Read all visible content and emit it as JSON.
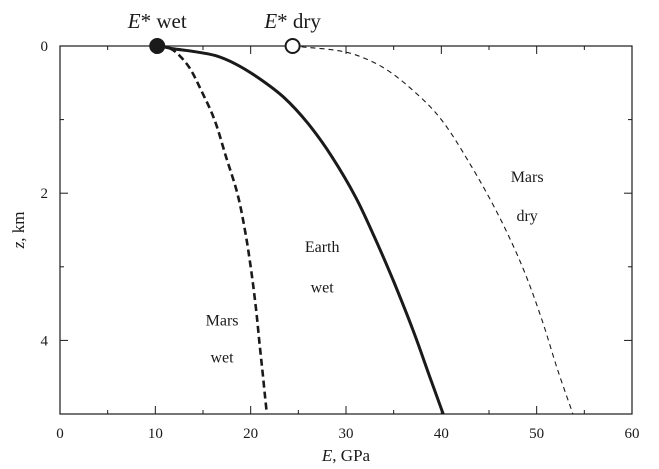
{
  "chart_data": {
    "type": "line",
    "xlabel_italic": "E",
    "xlabel_rest": ", GPa",
    "ylabel_italic": "z",
    "ylabel_rest": ", km",
    "xlim": [
      0,
      60
    ],
    "ylim": [
      0,
      5
    ],
    "y_inverted": true,
    "grid": false,
    "x_ticks": [
      0,
      10,
      20,
      30,
      40,
      50,
      60
    ],
    "y_ticks": [
      0,
      2,
      4
    ],
    "series": [
      {
        "style": "thick-dashed",
        "points": [
          [
            10.4,
            0
          ],
          [
            11.3,
            0.02
          ],
          [
            12.3,
            0.1
          ],
          [
            13.6,
            0.3
          ],
          [
            14.8,
            0.6
          ],
          [
            16.2,
            1.0
          ],
          [
            17.4,
            1.5
          ],
          [
            18.6,
            2.0
          ],
          [
            19.4,
            2.5
          ],
          [
            20.0,
            3.0
          ],
          [
            20.5,
            3.5
          ],
          [
            20.9,
            4.0
          ],
          [
            21.3,
            4.5
          ],
          [
            21.7,
            5.0
          ]
        ]
      },
      {
        "style": "thick-solid",
        "points": [
          [
            10.4,
            0
          ],
          [
            12.0,
            0.04
          ],
          [
            13.8,
            0.07
          ],
          [
            16.3,
            0.13
          ],
          [
            18.5,
            0.25
          ],
          [
            21.0,
            0.45
          ],
          [
            23.5,
            0.7
          ],
          [
            26.0,
            1.05
          ],
          [
            28.5,
            1.5
          ],
          [
            31.0,
            2.05
          ],
          [
            33.0,
            2.6
          ],
          [
            35.0,
            3.2
          ],
          [
            37.0,
            3.85
          ],
          [
            38.8,
            4.5
          ],
          [
            40.2,
            5.0
          ]
        ]
      },
      {
        "style": "thin-dashed",
        "points": [
          [
            24.4,
            0
          ],
          [
            26.0,
            0.02
          ],
          [
            28.5,
            0.05
          ],
          [
            31.0,
            0.12
          ],
          [
            34.0,
            0.3
          ],
          [
            37.0,
            0.6
          ],
          [
            40.0,
            1.0
          ],
          [
            43.0,
            1.6
          ],
          [
            46.0,
            2.3
          ],
          [
            48.5,
            3.0
          ],
          [
            50.5,
            3.7
          ],
          [
            52.2,
            4.4
          ],
          [
            53.8,
            5.0
          ]
        ]
      }
    ],
    "markers": [
      {
        "x": 10.2,
        "y": 0,
        "fill": "filled",
        "label_italic": "E",
        "label_rest": "* wet"
      },
      {
        "x": 24.4,
        "y": 0,
        "fill": "open",
        "label_italic": "E",
        "label_rest": "* dry"
      }
    ],
    "annotations": [
      {
        "lines": [
          "Mars",
          "wet"
        ],
        "x": 17.0,
        "y": [
          3.8,
          4.3
        ]
      },
      {
        "lines": [
          "Earth",
          "wet"
        ],
        "x": 27.5,
        "y": [
          2.8,
          3.35
        ]
      },
      {
        "lines": [
          "Mars",
          "dry"
        ],
        "x": 49.0,
        "y": [
          1.85,
          2.38
        ]
      }
    ]
  },
  "colors": {
    "ink": "#1a1a1a",
    "background": "#ffffff"
  }
}
